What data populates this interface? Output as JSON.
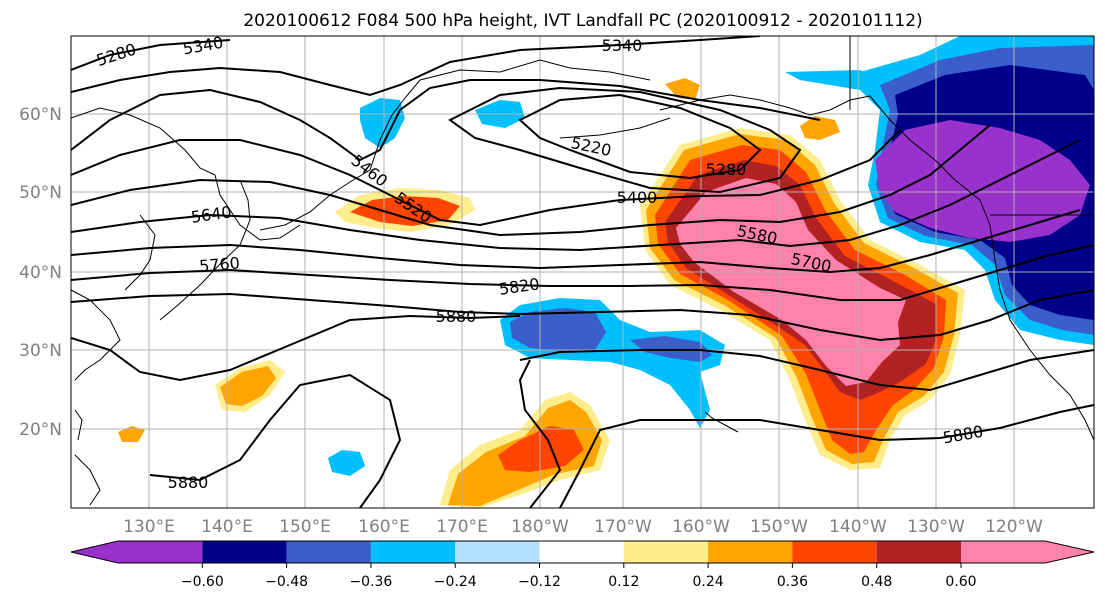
{
  "title": "2020100612 F084 500 hPa height, IVT Landfall PC (2020100912 - 2020101112)",
  "lon_ticks": [
    "130°E",
    "140°E",
    "150°E",
    "160°E",
    "170°E",
    "180°W",
    "170°W",
    "160°W",
    "150°W",
    "140°W",
    "130°W",
    "120°W"
  ],
  "lat_ticks": [
    "60°N",
    "50°N",
    "40°N",
    "30°N",
    "20°N"
  ],
  "colorbar": {
    "colors": [
      "#9932cc",
      "#00008b",
      "#3a5fcd",
      "#00bfff",
      "#b2dfff",
      "#ffffff",
      "#ffec8b",
      "#ffa500",
      "#ff4500",
      "#b22222",
      "#ff82ab"
    ],
    "labels": [
      "−0.60",
      "−0.48",
      "−0.36",
      "−0.24",
      "−0.12",
      "0.12",
      "0.24",
      "0.36",
      "0.48",
      "0.60"
    ]
  },
  "contour_labels": [
    "5280",
    "5340",
    "5340",
    "5220",
    "5460",
    "5520",
    "5280",
    "5400",
    "5640",
    "5580",
    "5700",
    "5760",
    "5820",
    "5880",
    "5880",
    "5880"
  ]
}
